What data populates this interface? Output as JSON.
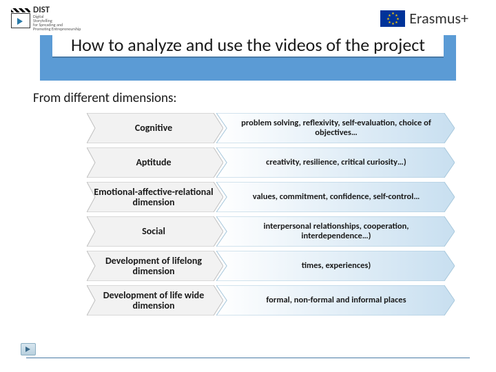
{
  "logos": {
    "dist_title": "DIST",
    "dist_sub1": "Digital",
    "dist_sub2": "Storytelling",
    "dist_sub3": "for Spreading and",
    "dist_sub4": "Promoting Entrepreneurship",
    "erasmus": "Erasmus+"
  },
  "title": "How to analyze and use the videos of the project",
  "subtitle": "From different dimensions:",
  "colors": {
    "title_bar": "#5b9bd5",
    "title_underline": "#4a7ba6",
    "chevron_left_fill": "#f2f2f2",
    "chevron_left_stroke": "#bfbfbf",
    "chevron_right_start": "#ffffff",
    "chevron_right_end": "#c8dff0",
    "chevron_right_stroke": "#a8c8dc"
  },
  "rows": [
    {
      "label": "Cognitive",
      "desc": "problem solving, reflexivity, self-evaluation, choice of objectives…"
    },
    {
      "label": "Aptitude",
      "desc": "creativity, resilience, critical curiosity…)"
    },
    {
      "label": "Emotional-affective-relational dimension",
      "desc": "values, commitment, confidence, self-control…"
    },
    {
      "label": "Social",
      "desc": "interpersonal relationships, cooperation, interdependence…)"
    },
    {
      "label": "Development of lifelong dimension",
      "desc": "times, experiences)"
    },
    {
      "label": "Development of life wide dimension",
      "desc": "formal, non-formal and informal places"
    }
  ]
}
